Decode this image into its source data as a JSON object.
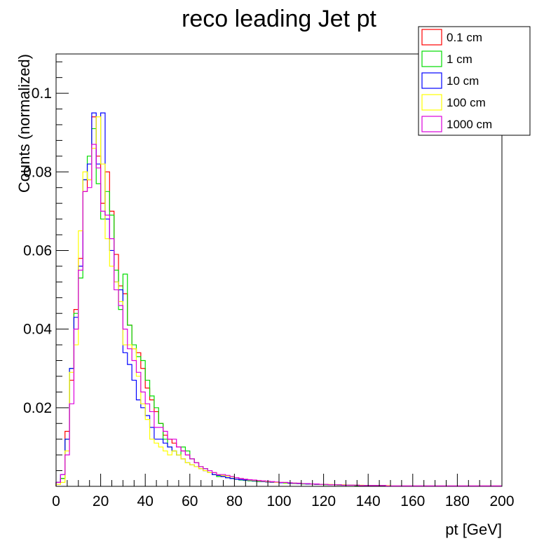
{
  "chart_data": {
    "type": "histogram-step",
    "title": "reco leading Jet pt",
    "xlabel": "pt [GeV]",
    "ylabel": "Counts (normalized)",
    "xlim": [
      0,
      200
    ],
    "ylim": [
      0,
      0.11
    ],
    "bin_width": 2,
    "x_ticks": [
      0,
      20,
      40,
      60,
      80,
      100,
      120,
      140,
      160,
      180,
      200
    ],
    "x_tick_labels": [
      "0",
      "20",
      "40",
      "60",
      "80",
      "100",
      "120",
      "140",
      "160",
      "180",
      "200"
    ],
    "y_ticks": [
      0.02,
      0.04,
      0.06,
      0.08,
      0.1
    ],
    "y_tick_labels": [
      "0.02",
      "0.04",
      "0.06",
      "0.08",
      "0.1"
    ],
    "grid": false,
    "legend_position": "top-right",
    "series": [
      {
        "name": "0.1 cm",
        "color": "#ff0000",
        "values": [
          0.001,
          0.002,
          0.014,
          0.027,
          0.045,
          0.058,
          0.075,
          0.078,
          0.094,
          0.084,
          0.072,
          0.08,
          0.07,
          0.059,
          0.051,
          0.049,
          0.041,
          0.035,
          0.034,
          0.03,
          0.025,
          0.022,
          0.019,
          0.016,
          0.013,
          0.012,
          0.011,
          0.01,
          0.009,
          0.008,
          0.007,
          0.006,
          0.005,
          0.004,
          0.0035,
          0.003,
          0.0028,
          0.0025,
          0.0022,
          0.002,
          0.0018,
          0.0017,
          0.0016,
          0.0015,
          0.0014,
          0.0013,
          0.0012,
          0.0011,
          0.001,
          0.001,
          0.0009,
          0.0009,
          0.0008,
          0.0008,
          0.0007,
          0.0007,
          0.0006,
          0.0006,
          0.0005,
          0.0005,
          0.0005,
          0.0004,
          0.0004,
          0.0004,
          0.0003,
          0.0003,
          0.0003,
          0.0003,
          0.0002,
          0.0002,
          0.0002,
          0.0002,
          0.0002,
          0.0002,
          0.0001,
          0.0001,
          0.0001,
          0.0001,
          0.0001,
          0.0001,
          0.0001,
          0.0001,
          0.0001,
          0.0001,
          0.0001,
          0.0001,
          0.0001,
          0.0001,
          0.0001,
          0.0001,
          0.0001,
          0.0001,
          0.0001,
          0.0001,
          0.0001,
          0.0001,
          0.0001,
          0.0001,
          0.0001,
          0.0001
        ]
      },
      {
        "name": "1 cm",
        "color": "#00dd00",
        "values": [
          0.001,
          0.002,
          0.012,
          0.03,
          0.044,
          0.053,
          0.078,
          0.084,
          0.091,
          0.077,
          0.068,
          0.075,
          0.069,
          0.055,
          0.045,
          0.054,
          0.041,
          0.036,
          0.033,
          0.032,
          0.027,
          0.023,
          0.02,
          0.016,
          0.012,
          0.01,
          0.009,
          0.008,
          0.01,
          0.009,
          0.007,
          0.006,
          0.005,
          0.0045,
          0.0035,
          0.003,
          0.0025,
          0.0025,
          0.0022,
          0.002,
          0.0018,
          0.0016,
          0.0015,
          0.0014,
          0.0013,
          0.0012,
          0.0012,
          0.0011,
          0.001,
          0.001,
          0.0009,
          0.0008,
          0.0008,
          0.0007,
          0.0007,
          0.0006,
          0.0006,
          0.0006,
          0.0005,
          0.0005,
          0.0004,
          0.0004,
          0.0004,
          0.0003,
          0.0003,
          0.0003,
          0.0003,
          0.0002,
          0.0002,
          0.0002,
          0.0002,
          0.0002,
          0.0002,
          0.0002,
          0.0001,
          0.0001,
          0.0001,
          0.0001,
          0.0001,
          0.0001,
          0.0001,
          0.0001,
          0.0001,
          0.0001,
          0.0001,
          0.0001,
          0.0001,
          0.0001,
          0.0001,
          0.0001,
          0.0001,
          0.0001,
          0.0001,
          0.0001,
          0.0001,
          0.0001,
          0.0001,
          0.0001,
          0.0001,
          0.0001
        ]
      },
      {
        "name": "10 cm",
        "color": "#0000ff",
        "values": [
          0.001,
          0.003,
          0.012,
          0.03,
          0.043,
          0.056,
          0.078,
          0.082,
          0.095,
          0.082,
          0.095,
          0.068,
          0.06,
          0.052,
          0.05,
          0.034,
          0.031,
          0.027,
          0.022,
          0.02,
          0.018,
          0.015,
          0.012,
          0.012,
          0.011,
          0.01,
          0.009,
          0.008,
          0.007,
          0.006,
          0.0055,
          0.005,
          0.0045,
          0.004,
          0.0035,
          0.003,
          0.0028,
          0.0025,
          0.0022,
          0.002,
          0.0018,
          0.0017,
          0.0016,
          0.0015,
          0.0014,
          0.0013,
          0.0012,
          0.0011,
          0.001,
          0.001,
          0.0009,
          0.0009,
          0.0008,
          0.0008,
          0.0007,
          0.0007,
          0.0006,
          0.0006,
          0.0005,
          0.0005,
          0.0005,
          0.0004,
          0.0004,
          0.0004,
          0.0003,
          0.0003,
          0.0003,
          0.0003,
          0.0002,
          0.0002,
          0.0002,
          0.0002,
          0.0002,
          0.0002,
          0.0001,
          0.0001,
          0.0001,
          0.0001,
          0.0001,
          0.0001,
          0.0001,
          0.0001,
          0.0001,
          0.0001,
          0.0001,
          0.0001,
          0.0001,
          0.0001,
          0.0001,
          0.0001,
          0.0001,
          0.0001,
          0.0001,
          0.0001,
          0.0001,
          0.0001,
          0.0001,
          0.0001,
          0.0001,
          0.0001
        ]
      },
      {
        "name": "100 cm",
        "color": "#ffff00",
        "values": [
          0.0005,
          0.001,
          0.009,
          0.029,
          0.036,
          0.065,
          0.08,
          0.078,
          0.086,
          0.094,
          0.082,
          0.063,
          0.056,
          0.052,
          0.047,
          0.036,
          0.036,
          0.035,
          0.028,
          0.021,
          0.017,
          0.012,
          0.011,
          0.01,
          0.009,
          0.008,
          0.009,
          0.008,
          0.007,
          0.006,
          0.0055,
          0.005,
          0.0045,
          0.004,
          0.0035,
          0.0035,
          0.003,
          0.0028,
          0.0026,
          0.0024,
          0.0022,
          0.002,
          0.0018,
          0.0016,
          0.0015,
          0.0014,
          0.0013,
          0.0012,
          0.0011,
          0.001,
          0.001,
          0.0009,
          0.0009,
          0.0008,
          0.0008,
          0.0007,
          0.0007,
          0.0006,
          0.0006,
          0.0005,
          0.0005,
          0.0005,
          0.0004,
          0.0004,
          0.0004,
          0.0003,
          0.0003,
          0.0003,
          0.0003,
          0.0002,
          0.0002,
          0.0002,
          0.0002,
          0.0002,
          0.0002,
          0.0001,
          0.0001,
          0.0001,
          0.0001,
          0.0001,
          0.0001,
          0.0001,
          0.0001,
          0.0001,
          0.0001,
          0.0001,
          0.0001,
          0.0001,
          0.0001,
          0.0001,
          0.0001,
          0.0001,
          0.0001,
          0.0001,
          0.0001,
          0.0001,
          0.0001,
          0.0001,
          0.0001,
          0.0001
        ]
      },
      {
        "name": "1000 cm",
        "color": "#dd00dd",
        "values": [
          0.001,
          0.003,
          0.008,
          0.021,
          0.04,
          0.055,
          0.075,
          0.076,
          0.087,
          0.081,
          0.07,
          0.069,
          0.063,
          0.05,
          0.046,
          0.04,
          0.035,
          0.032,
          0.029,
          0.024,
          0.021,
          0.019,
          0.015,
          0.015,
          0.014,
          0.012,
          0.012,
          0.01,
          0.009,
          0.008,
          0.007,
          0.006,
          0.005,
          0.0045,
          0.004,
          0.0035,
          0.003,
          0.003,
          0.0028,
          0.0025,
          0.0022,
          0.002,
          0.0018,
          0.0017,
          0.0016,
          0.0015,
          0.0014,
          0.0013,
          0.0012,
          0.0011,
          0.001,
          0.001,
          0.0009,
          0.0008,
          0.0008,
          0.0007,
          0.0007,
          0.0006,
          0.0006,
          0.0005,
          0.0005,
          0.0004,
          0.0004,
          0.0004,
          0.0003,
          0.0003,
          0.0003,
          0.0003,
          0.0002,
          0.0002,
          0.0002,
          0.0002,
          0.0002,
          0.0002,
          0.0001,
          0.0001,
          0.0001,
          0.0001,
          0.0001,
          0.0001,
          0.0001,
          0.0001,
          0.0001,
          0.0001,
          0.0001,
          0.0001,
          0.0001,
          0.0001,
          0.0001,
          0.0001,
          0.0001,
          0.0001,
          0.0001,
          0.0001,
          0.0001,
          0.0001,
          0.0001,
          0.0001,
          0.0001,
          0.0001
        ]
      }
    ]
  }
}
